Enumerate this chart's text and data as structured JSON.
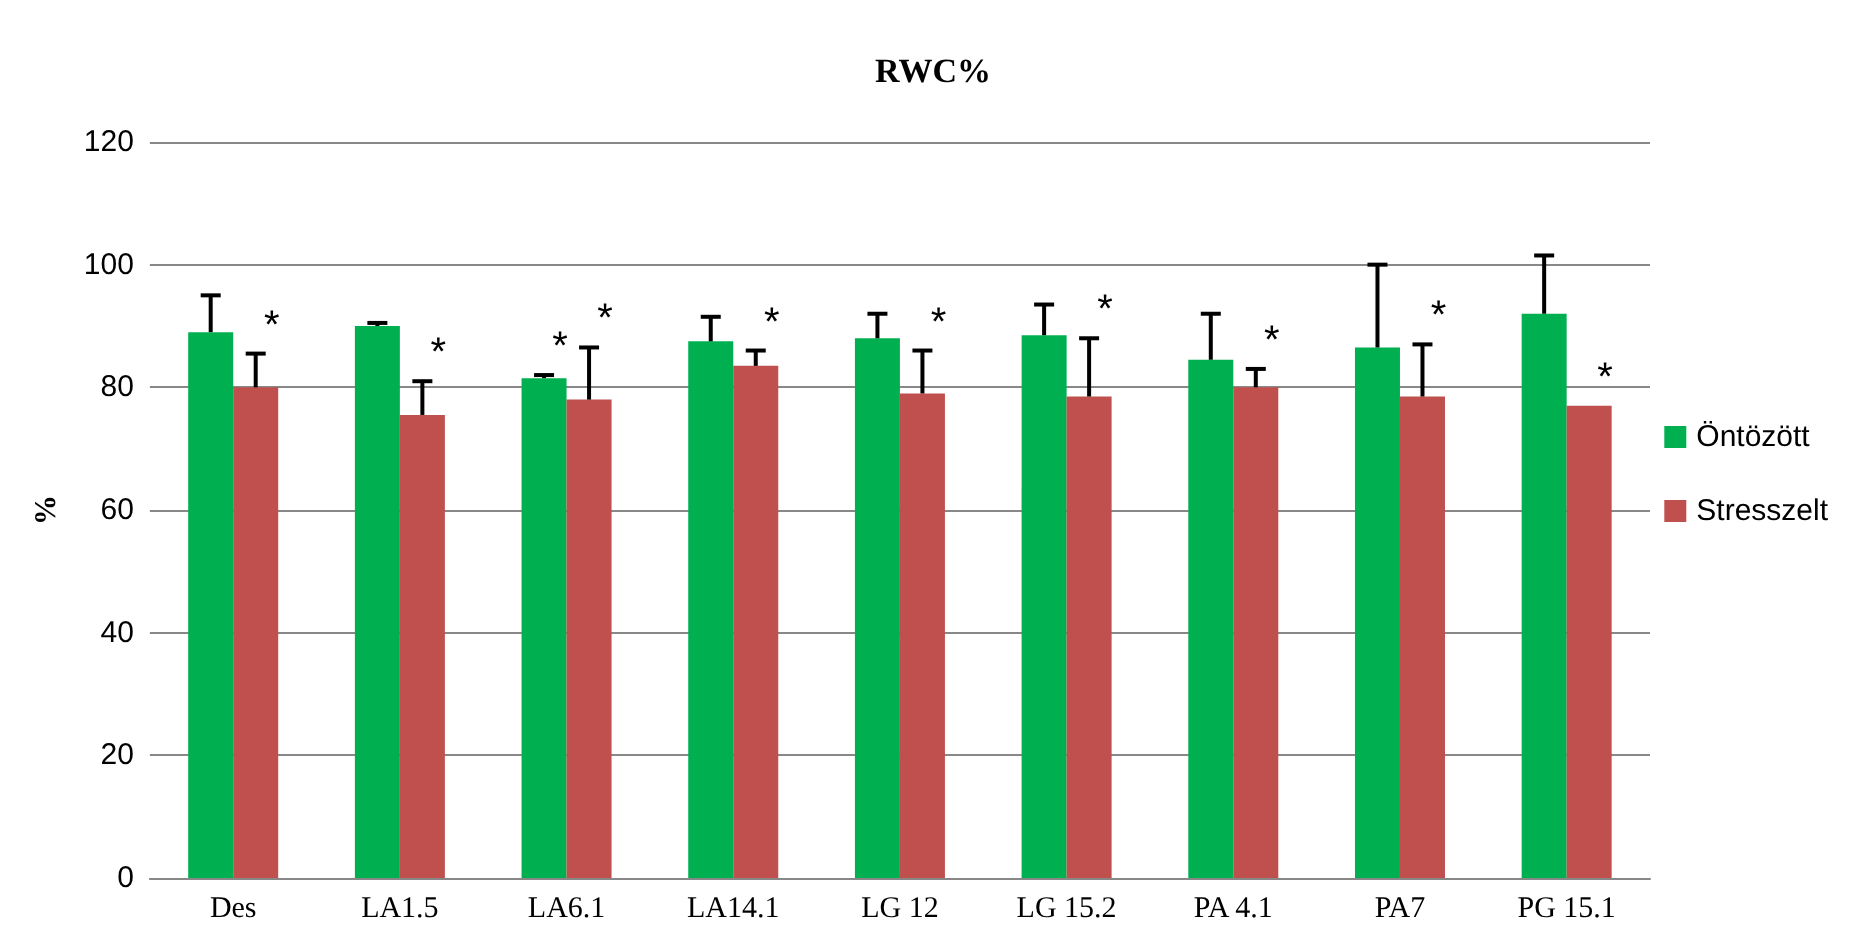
{
  "chart_data": {
    "type": "bar",
    "title": "RWC%",
    "ylabel": "%",
    "categories": [
      "Des",
      "LA1.5",
      "LA6.1",
      "LA14.1",
      "LG 12",
      "LG 15.2",
      "PA 4.1",
      "PA7",
      "PG 15.1"
    ],
    "series": [
      {
        "name": "Öntözött",
        "color": "#00b050",
        "values": [
          89,
          90,
          81.5,
          87.5,
          88,
          88.5,
          84.5,
          86.5,
          92
        ],
        "errors": [
          [
            89,
            95
          ],
          [
            90,
            90.5
          ],
          [
            81.5,
            82
          ],
          [
            87.5,
            91.5
          ],
          [
            88,
            92
          ],
          [
            88.5,
            93.5
          ],
          [
            84.5,
            92
          ],
          [
            86.5,
            100
          ],
          [
            92,
            101.5
          ]
        ],
        "value_labels": [
          null,
          null,
          "*",
          null,
          null,
          null,
          null,
          null,
          null
        ]
      },
      {
        "name": "Stresszelt",
        "color": "#c0504d",
        "values": [
          80,
          75.5,
          78,
          83.5,
          79,
          78.5,
          80,
          78.5,
          77
        ],
        "errors": [
          [
            80,
            85.5
          ],
          [
            75.5,
            81
          ],
          [
            78,
            86.5
          ],
          [
            83.5,
            86
          ],
          [
            79,
            86
          ],
          [
            78.5,
            88
          ],
          [
            80,
            83
          ],
          [
            78.5,
            87
          ],
          null
        ],
        "value_labels": [
          "*",
          "*",
          "*",
          "*",
          "*",
          "*",
          "*",
          "*",
          "*"
        ]
      }
    ],
    "ylim": [
      0,
      120
    ],
    "yticks": [
      0,
      20,
      40,
      60,
      80,
      100,
      120
    ],
    "grid": "y",
    "legend": "right"
  }
}
